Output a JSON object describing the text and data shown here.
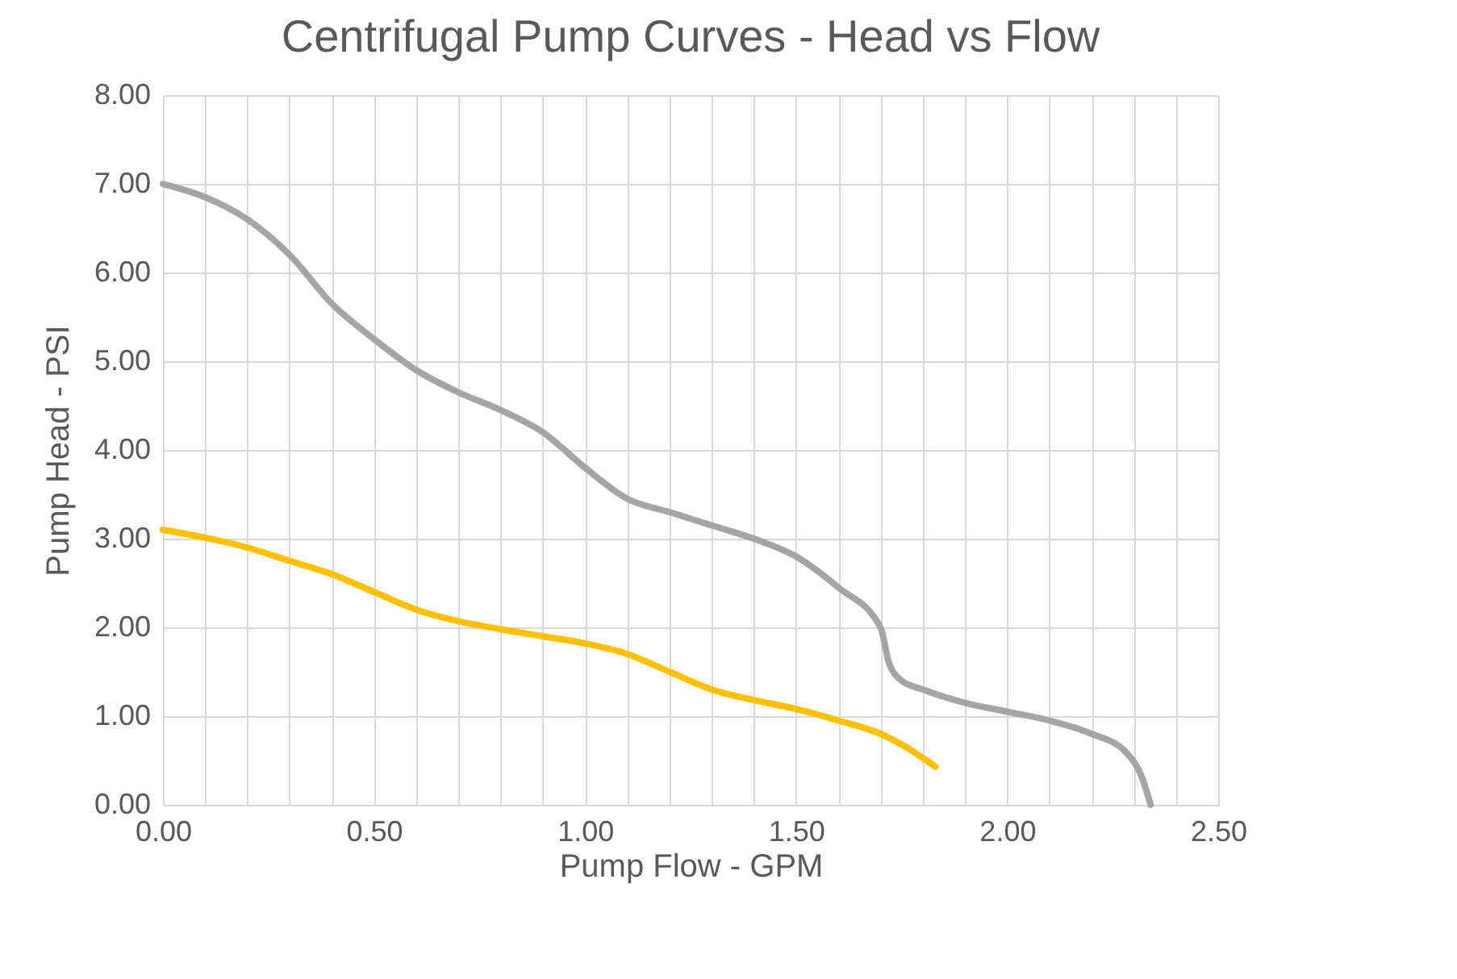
{
  "chart_data": {
    "type": "line",
    "title": "Centrifugal Pump Curves - Head vs Flow",
    "xlabel": "Pump Flow - GPM",
    "ylabel": "Pump Head - PSI",
    "series": [
      {
        "color": "#a5a5a5",
        "x": [
          0,
          0.1,
          0.2,
          0.3,
          0.4,
          0.5,
          0.6,
          0.7,
          0.8,
          0.9,
          1.0,
          1.1,
          1.2,
          1.3,
          1.4,
          1.5,
          1.6,
          1.7,
          1.72,
          1.75,
          1.8,
          1.9,
          2.0,
          2.1,
          2.2,
          2.28,
          2.32,
          2.34
        ],
        "values": [
          7.0,
          6.85,
          6.6,
          6.2,
          5.65,
          5.25,
          4.9,
          4.65,
          4.45,
          4.2,
          3.8,
          3.45,
          3.3,
          3.15,
          3.0,
          2.8,
          2.45,
          2.0,
          1.6,
          1.4,
          1.3,
          1.15,
          1.05,
          0.95,
          0.8,
          0.6,
          0.3,
          0.0
        ]
      },
      {
        "color": "#ffc000",
        "x": [
          0,
          0.2,
          0.3,
          0.4,
          0.5,
          0.6,
          0.7,
          0.8,
          0.9,
          1.0,
          1.1,
          1.2,
          1.3,
          1.4,
          1.5,
          1.6,
          1.7,
          1.75,
          1.83
        ],
        "values": [
          3.1,
          2.9,
          2.75,
          2.6,
          2.4,
          2.2,
          2.07,
          1.98,
          1.9,
          1.82,
          1.7,
          1.5,
          1.3,
          1.18,
          1.08,
          0.95,
          0.8,
          0.68,
          0.43
        ]
      }
    ],
    "xlim": [
      0,
      2.5
    ],
    "xticks": [
      {
        "value": 0,
        "label": "0.00"
      },
      {
        "value": 0.1,
        "label": null
      },
      {
        "value": 0.2,
        "label": null
      },
      {
        "value": 0.3,
        "label": null
      },
      {
        "value": 0.4,
        "label": null
      },
      {
        "value": 0.5,
        "label": "0.50"
      },
      {
        "value": 0.6,
        "label": null
      },
      {
        "value": 0.7,
        "label": null
      },
      {
        "value": 0.8,
        "label": null
      },
      {
        "value": 0.9,
        "label": null
      },
      {
        "value": 1.0,
        "label": "1.00"
      },
      {
        "value": 1.1,
        "label": null
      },
      {
        "value": 1.2,
        "label": null
      },
      {
        "value": 1.3,
        "label": null
      },
      {
        "value": 1.4,
        "label": null
      },
      {
        "value": 1.5,
        "label": "1.50"
      },
      {
        "value": 1.6,
        "label": null
      },
      {
        "value": 1.7,
        "label": null
      },
      {
        "value": 1.8,
        "label": null
      },
      {
        "value": 1.9,
        "label": null
      },
      {
        "value": 2.0,
        "label": "2.00"
      },
      {
        "value": 2.1,
        "label": null
      },
      {
        "value": 2.2,
        "label": null
      },
      {
        "value": 2.3,
        "label": null
      },
      {
        "value": 2.4,
        "label": null
      },
      {
        "value": 2.5,
        "label": "2.50"
      }
    ],
    "ylim": [
      0,
      8
    ],
    "yticks": [
      {
        "value": 0,
        "label": "0.00"
      },
      {
        "value": 1,
        "label": "1.00"
      },
      {
        "value": 2,
        "label": "2.00"
      },
      {
        "value": 3,
        "label": "3.00"
      },
      {
        "value": 4,
        "label": "4.00"
      },
      {
        "value": 5,
        "label": "5.00"
      },
      {
        "value": 6,
        "label": "6.00"
      },
      {
        "value": 7,
        "label": "7.00"
      },
      {
        "value": 8,
        "label": "8.00"
      }
    ],
    "grid": true,
    "marker": "none",
    "line_style": "solid"
  }
}
